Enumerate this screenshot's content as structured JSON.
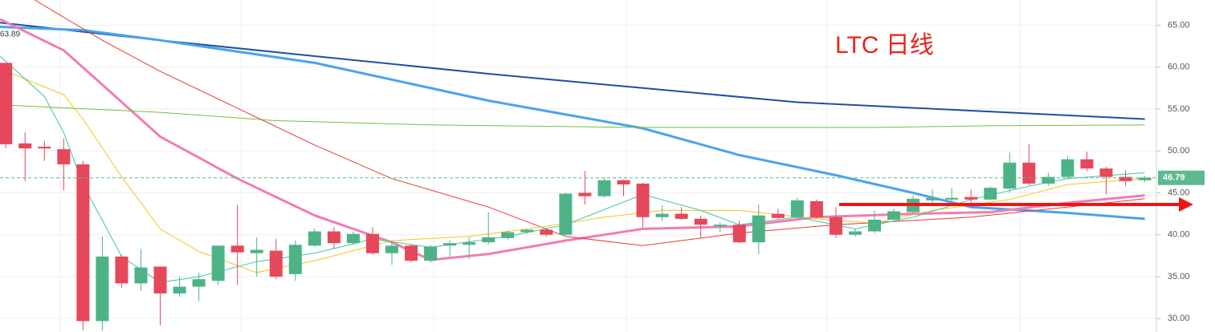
{
  "chart_data": {
    "type": "candlestick",
    "title": "LTC 日线",
    "title_color": "#e8231c",
    "up_color": "#4db387",
    "down_color": "#e5485a",
    "xlim": [
      -0.3,
      59.6
    ],
    "ylim": [
      28.4,
      68
    ],
    "yticks": [
      {
        "value": 30,
        "label": "30.00"
      },
      {
        "value": 35,
        "label": "35.00"
      },
      {
        "value": 40,
        "label": "40.00"
      },
      {
        "value": 45,
        "label": "45.00"
      },
      {
        "value": 50,
        "label": "50.00"
      },
      {
        "value": 55,
        "label": "55.00"
      },
      {
        "value": 60,
        "label": "60.00"
      },
      {
        "value": 65,
        "label": "65.00"
      }
    ],
    "grid": true,
    "last_price": {
      "value": 46.79,
      "label": "46.79",
      "color": "#5cb990"
    },
    "annotation": {
      "value": 63.89,
      "label": "63.89"
    },
    "open": [
      60.5,
      50.9,
      50.5,
      50.2,
      48.4,
      29.7,
      37.4,
      34.2,
      36.2,
      33.0,
      33.8,
      34.5,
      38.7,
      37.8,
      38.1,
      35.3,
      38.7,
      40.4,
      39.0,
      40.1,
      37.8,
      38.7,
      36.9,
      38.7,
      38.8,
      39.1,
      39.6,
      40.3,
      40.6,
      40.0,
      45.0,
      44.6,
      46.5,
      46.1,
      42.1,
      42.5,
      41.9,
      41.0,
      41.2,
      39.1,
      42.5,
      42.1,
      44.0,
      42.1,
      40.0,
      40.4,
      41.8,
      42.7,
      44.1,
      44.2,
      44.5,
      44.2,
      45.5,
      48.6,
      46.1,
      46.9,
      49.0,
      47.9,
      46.9,
      46.5
    ],
    "close": [
      50.8,
      50.3,
      50.3,
      48.4,
      29.7,
      37.4,
      34.2,
      36.1,
      33.0,
      33.8,
      34.7,
      38.7,
      37.9,
      38.2,
      35.0,
      38.8,
      40.4,
      39.0,
      40.1,
      37.8,
      38.7,
      36.9,
      38.6,
      39.0,
      39.1,
      39.7,
      40.3,
      40.6,
      40.0,
      44.9,
      44.6,
      46.5,
      46.0,
      42.1,
      42.5,
      41.9,
      41.2,
      41.2,
      39.1,
      42.3,
      42.0,
      44.1,
      42.1,
      40.0,
      40.4,
      41.8,
      42.8,
      44.3,
      44.4,
      44.4,
      44.2,
      45.6,
      48.6,
      46.1,
      46.9,
      49.0,
      47.9,
      46.9,
      46.4,
      46.8
    ],
    "high": [
      60.5,
      52.2,
      51.2,
      51.5,
      48.8,
      39.8,
      37.6,
      38.3,
      36.2,
      35.0,
      35.5,
      38.7,
      43.6,
      39.7,
      39.5,
      39.3,
      40.7,
      40.9,
      40.4,
      40.9,
      39.3,
      38.9,
      38.8,
      39.3,
      39.7,
      42.7,
      40.5,
      40.7,
      40.8,
      45.0,
      47.6,
      46.8,
      46.6,
      46.2,
      43.5,
      43.3,
      42.3,
      41.5,
      41.7,
      43.6,
      43.1,
      44.4,
      44.2,
      43.3,
      40.7,
      42.9,
      43.1,
      44.7,
      45.4,
      45.6,
      45.4,
      45.8,
      49.8,
      50.8,
      47.4,
      49.4,
      49.9,
      48.1,
      47.7,
      47.0
    ],
    "low": [
      50.3,
      46.4,
      48.8,
      45.3,
      28.6,
      28.6,
      33.7,
      33.3,
      29.2,
      32.6,
      32.1,
      34.0,
      34.0,
      35.0,
      34.7,
      34.5,
      38.5,
      38.3,
      38.8,
      37.6,
      36.4,
      36.7,
      36.7,
      37.4,
      37.1,
      38.9,
      39.4,
      40.1,
      39.8,
      39.9,
      43.6,
      44.4,
      44.6,
      40.9,
      41.7,
      41.8,
      39.6,
      40.3,
      39.0,
      37.7,
      41.9,
      41.9,
      42.0,
      39.6,
      39.8,
      40.2,
      41.6,
      42.5,
      43.8,
      43.6,
      43.3,
      44.1,
      45.0,
      45.9,
      45.8,
      46.7,
      47.6,
      44.8,
      45.8,
      46.3
    ],
    "series": [
      {
        "color": "#1e4f9e",
        "width": 2,
        "x": [
          -0.3,
          8,
          16,
          25,
          33,
          41,
          50,
          59
        ],
        "values": [
          65.3,
          63.2,
          61.3,
          59.2,
          57.5,
          55.8,
          54.8,
          53.8
        ]
      },
      {
        "color": "#4aa3ef",
        "width": 3,
        "x": [
          -0.3,
          4,
          8,
          16,
          25,
          33,
          38,
          43,
          47,
          50,
          55,
          59
        ],
        "values": [
          64.8,
          64.4,
          63.2,
          60.5,
          56.0,
          52.7,
          49.5,
          47.1,
          45.0,
          43.3,
          42.6,
          41.9
        ]
      },
      {
        "color": "#f17cb5",
        "width": 3,
        "x": [
          -0.3,
          3,
          5,
          8,
          12,
          16,
          20,
          22,
          25,
          29,
          33,
          38,
          42,
          47,
          51,
          55,
          59
        ],
        "values": [
          65.7,
          62.0,
          57.9,
          51.7,
          46.7,
          42.3,
          39.1,
          37.0,
          37.7,
          39.3,
          40.7,
          41.0,
          42.1,
          42.5,
          42.7,
          43.8,
          44.7
        ]
      },
      {
        "color": "#6fbf40",
        "width": 1,
        "x": [
          -0.3,
          8,
          14,
          22,
          33,
          45,
          51,
          59
        ],
        "values": [
          55.5,
          54.6,
          53.6,
          53.1,
          52.8,
          52.8,
          53.0,
          53.1
        ]
      },
      {
        "color": "#e53935",
        "width": 1,
        "x": [
          1.5,
          5,
          8,
          12,
          16,
          20,
          25,
          29,
          33,
          38,
          43,
          50,
          55,
          59
        ],
        "values": [
          68,
          63.2,
          59.5,
          55.1,
          50.7,
          46.7,
          43.3,
          39.8,
          38.7,
          40.2,
          41.2,
          42.1,
          43.3,
          44.3
        ]
      },
      {
        "color": "#f5c518",
        "width": 1,
        "x": [
          -0.3,
          3,
          4,
          6,
          8,
          10,
          13,
          16,
          20,
          24,
          28,
          31,
          34,
          38,
          42,
          45,
          48,
          52,
          55,
          59
        ],
        "values": [
          59.8,
          56.7,
          53.8,
          46.9,
          40.7,
          38.0,
          35.5,
          36.9,
          39.3,
          39.8,
          41.0,
          42.1,
          42.9,
          42.9,
          41.9,
          41.4,
          42.9,
          44.2,
          46.0,
          46.7
        ]
      },
      {
        "color": "#3cc4a8",
        "width": 1,
        "x": [
          -0.3,
          2,
          3,
          4,
          6,
          8,
          10,
          13,
          16,
          19,
          22,
          26,
          29,
          33,
          36,
          38,
          41,
          44,
          47,
          50,
          53,
          55,
          59
        ],
        "values": [
          61.3,
          56.5,
          52.2,
          46.0,
          37.4,
          34.3,
          35.0,
          36.8,
          37.8,
          39.5,
          38.5,
          39.8,
          41.2,
          44.8,
          42.9,
          41.2,
          42.1,
          40.7,
          42.1,
          44.2,
          45.8,
          46.7,
          47.4
        ]
      }
    ]
  }
}
